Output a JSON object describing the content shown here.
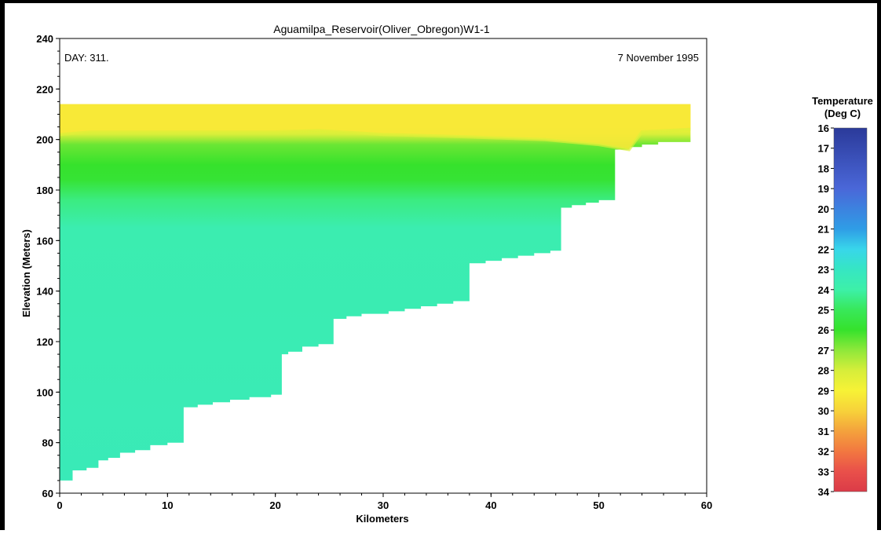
{
  "chart_data": {
    "type": "heatmap",
    "title": "Aguamilpa_Reservoir(Oliver_Obregon)W1-1",
    "day_label": "DAY: 311.",
    "date_label": "7 November 1995",
    "xlabel": "Kilometers",
    "ylabel": "Elevation (Meters)",
    "xlim": [
      0,
      60
    ],
    "ylim": [
      60,
      240
    ],
    "xticks": [
      "0",
      "10",
      "20",
      "30",
      "40",
      "50",
      "60"
    ],
    "yticks": [
      "60",
      "80",
      "100",
      "120",
      "140",
      "160",
      "180",
      "200",
      "220",
      "240"
    ],
    "water_surface_elevation": 214,
    "domain_end_km": 58.5,
    "bottom_profile": [
      {
        "x": 0,
        "y": 64
      },
      {
        "x": 1.2,
        "y": 65
      },
      {
        "x": 2.5,
        "y": 69
      },
      {
        "x": 3.6,
        "y": 70
      },
      {
        "x": 4.5,
        "y": 73
      },
      {
        "x": 5.6,
        "y": 74
      },
      {
        "x": 7.0,
        "y": 76
      },
      {
        "x": 8.4,
        "y": 77
      },
      {
        "x": 10.0,
        "y": 79
      },
      {
        "x": 11.5,
        "y": 80
      },
      {
        "x": 12.8,
        "y": 94
      },
      {
        "x": 14.2,
        "y": 95
      },
      {
        "x": 15.8,
        "y": 96
      },
      {
        "x": 17.6,
        "y": 97
      },
      {
        "x": 19.6,
        "y": 98
      },
      {
        "x": 20.6,
        "y": 99
      },
      {
        "x": 21.2,
        "y": 115
      },
      {
        "x": 22.5,
        "y": 116
      },
      {
        "x": 24.0,
        "y": 118
      },
      {
        "x": 25.4,
        "y": 119
      },
      {
        "x": 26.6,
        "y": 129
      },
      {
        "x": 28.0,
        "y": 130
      },
      {
        "x": 30.5,
        "y": 131
      },
      {
        "x": 32.0,
        "y": 132
      },
      {
        "x": 33.5,
        "y": 133
      },
      {
        "x": 35.0,
        "y": 134
      },
      {
        "x": 36.5,
        "y": 135
      },
      {
        "x": 38.0,
        "y": 136
      },
      {
        "x": 39.5,
        "y": 151
      },
      {
        "x": 41.0,
        "y": 152
      },
      {
        "x": 42.5,
        "y": 153
      },
      {
        "x": 44.0,
        "y": 154
      },
      {
        "x": 45.5,
        "y": 155
      },
      {
        "x": 46.5,
        "y": 156
      },
      {
        "x": 47.5,
        "y": 173
      },
      {
        "x": 48.8,
        "y": 174
      },
      {
        "x": 50.0,
        "y": 175
      },
      {
        "x": 51.5,
        "y": 176
      },
      {
        "x": 52.8,
        "y": 196
      },
      {
        "x": 54.0,
        "y": 197
      },
      {
        "x": 55.5,
        "y": 198
      },
      {
        "x": 56.8,
        "y": 199
      },
      {
        "x": 58.5,
        "y": 199
      }
    ],
    "thermocline_profile": [
      {
        "x": 0,
        "y": 202
      },
      {
        "x": 3,
        "y": 203
      },
      {
        "x": 10,
        "y": 203
      },
      {
        "x": 20,
        "y": 203
      },
      {
        "x": 24,
        "y": 203.5
      },
      {
        "x": 30,
        "y": 202
      },
      {
        "x": 38,
        "y": 201
      },
      {
        "x": 45,
        "y": 200
      },
      {
        "x": 50,
        "y": 198
      },
      {
        "x": 52.8,
        "y": 196
      },
      {
        "x": 54,
        "y": 203
      },
      {
        "x": 58.5,
        "y": 204
      }
    ],
    "temperature_layers": [
      {
        "elevation": 214,
        "temperature": 29.3
      },
      {
        "elevation": 205,
        "temperature": 29.0
      },
      {
        "elevation": 202,
        "temperature": 28.0
      },
      {
        "elevation": 198,
        "temperature": 26.6
      },
      {
        "elevation": 190,
        "temperature": 26.0
      },
      {
        "elevation": 184,
        "temperature": 25.8
      },
      {
        "elevation": 176,
        "temperature": 24.5
      },
      {
        "elevation": 165,
        "temperature": 23.7
      },
      {
        "elevation": 60,
        "temperature": 23.4
      }
    ],
    "legend": {
      "title_line1": "Temperature",
      "title_line2": "(Deg C)",
      "labels": [
        "16",
        "17",
        "18",
        "19",
        "20",
        "21",
        "22",
        "23",
        "24",
        "25",
        "26",
        "27",
        "28",
        "29",
        "30",
        "31",
        "32",
        "33",
        "34"
      ],
      "min": 16,
      "max": 34,
      "stops": [
        {
          "value": 16,
          "color": "#2b3a9a"
        },
        {
          "value": 19,
          "color": "#4a67d8"
        },
        {
          "value": 21,
          "color": "#2f9de6"
        },
        {
          "value": 22,
          "color": "#38d6ea"
        },
        {
          "value": 23,
          "color": "#36e6c3"
        },
        {
          "value": 24,
          "color": "#3df0a8"
        },
        {
          "value": 25,
          "color": "#38e85a"
        },
        {
          "value": 26,
          "color": "#36e22c"
        },
        {
          "value": 27,
          "color": "#8fe83a"
        },
        {
          "value": 28,
          "color": "#d6ee3a"
        },
        {
          "value": 29,
          "color": "#f7f236"
        },
        {
          "value": 30,
          "color": "#f7d23a"
        },
        {
          "value": 31,
          "color": "#f4a23c"
        },
        {
          "value": 32,
          "color": "#f27840"
        },
        {
          "value": 33,
          "color": "#e9504a"
        },
        {
          "value": 34,
          "color": "#db3b48"
        }
      ]
    }
  }
}
